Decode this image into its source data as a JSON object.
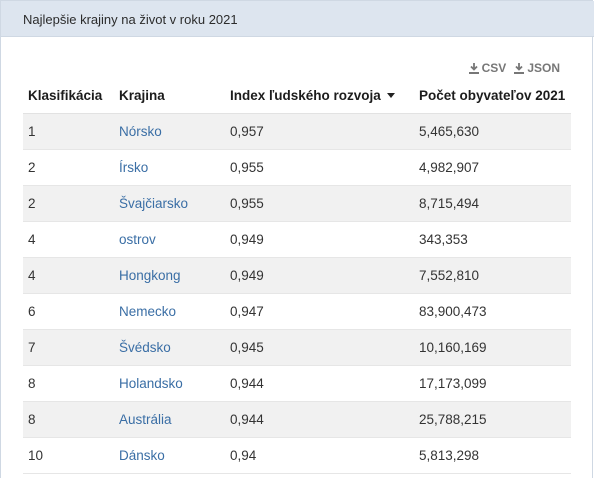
{
  "panel": {
    "title": "Najlepšie krajiny na život v roku 2021"
  },
  "downloads": {
    "csv": "CSV",
    "json": "JSON"
  },
  "table": {
    "headers": [
      "Klasifikácia",
      "Krajina",
      "Index ľudského rozvoja",
      "Počet obyvateľov 2021"
    ],
    "sorted_column": 2,
    "sort_direction": "desc",
    "rows": [
      {
        "rank": "1",
        "country": "Nórsko",
        "hdi": "0,957",
        "population": "5,465,630"
      },
      {
        "rank": "2",
        "country": "Írsko",
        "hdi": "0,955",
        "population": "4,982,907"
      },
      {
        "rank": "2",
        "country": "Švajčiarsko",
        "hdi": "0,955",
        "population": "8,715,494"
      },
      {
        "rank": "4",
        "country": "ostrov",
        "hdi": "0,949",
        "population": "343,353"
      },
      {
        "rank": "4",
        "country": "Hongkong",
        "hdi": "0,949",
        "population": "7,552,810"
      },
      {
        "rank": "6",
        "country": "Nemecko",
        "hdi": "0,947",
        "population": "83,900,473"
      },
      {
        "rank": "7",
        "country": "Švédsko",
        "hdi": "0,945",
        "population": "10,160,169"
      },
      {
        "rank": "8",
        "country": "Holandsko",
        "hdi": "0,944",
        "population": "17,173,099"
      },
      {
        "rank": "8",
        "country": "Austrália",
        "hdi": "0,944",
        "population": "25,788,215"
      },
      {
        "rank": "10",
        "country": "Dánsko",
        "hdi": "0,94",
        "population": "5,813,298"
      }
    ]
  },
  "colors": {
    "header_bg": "#dde5ef",
    "link": "#3a6ea5",
    "stripe": "#f1f1f1"
  },
  "icons": {
    "download": "download-icon",
    "sort": "sort-desc-icon"
  }
}
